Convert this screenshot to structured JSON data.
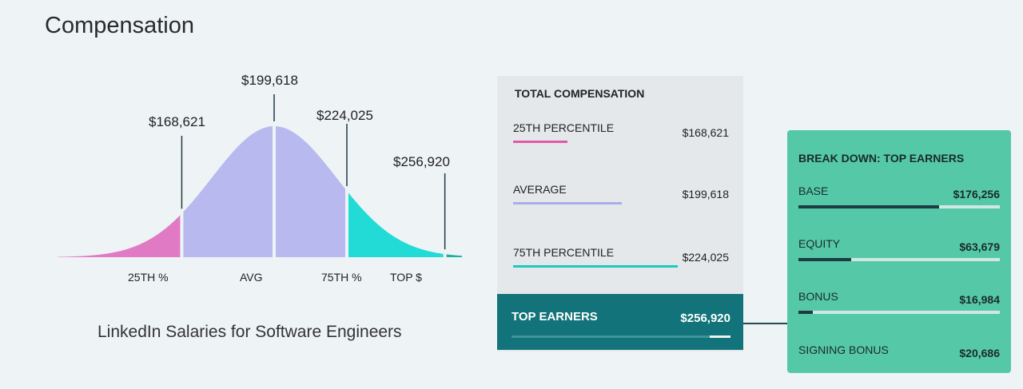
{
  "title": "Compensation",
  "subtitle": "LinkedIn Salaries for Software Engineers",
  "chart_data": {
    "type": "area",
    "title": "",
    "segments": [
      {
        "label": "25TH %",
        "value": 168621,
        "value_label": "$168,621",
        "color": "#e07ac4"
      },
      {
        "label": "AVG",
        "value": 199618,
        "value_label": "$199,618",
        "color": "#b7b9ef"
      },
      {
        "label": "75TH %",
        "value": 224025,
        "value_label": "$224,025",
        "color": "#22dbd6"
      },
      {
        "label": "TOP $",
        "value": 256920,
        "value_label": "$256,920",
        "color": "#1cb39c"
      }
    ]
  },
  "total": {
    "header": "TOTAL COMPENSATION",
    "rows": [
      {
        "label": "25TH PERCENTILE",
        "value": "$168,621",
        "color": "#e05aa8"
      },
      {
        "label": "AVERAGE",
        "value": "$199,618",
        "color": "#a9aee8"
      },
      {
        "label": "75TH PERCENTILE",
        "value": "$224,025",
        "color": "#1ec9c0"
      }
    ],
    "top": {
      "label": "TOP EARNERS",
      "value": "$256,920"
    }
  },
  "breakdown": {
    "header": "BREAK DOWN: TOP EARNERS",
    "rows": [
      {
        "label": "BASE",
        "value": "$176,256",
        "fraction": 0.7
      },
      {
        "label": "EQUITY",
        "value": "$63,679",
        "fraction": 0.26
      },
      {
        "label": "BONUS",
        "value": "$16,984",
        "fraction": 0.07
      },
      {
        "label": "SIGNING BONUS",
        "value": "$20,686"
      }
    ]
  }
}
